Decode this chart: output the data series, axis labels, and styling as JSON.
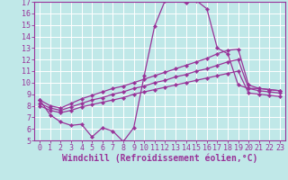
{
  "xlabel": "Windchill (Refroidissement éolien,°C)",
  "bg_color": "#c0e8e8",
  "grid_color": "#ffffff",
  "line_color": "#993399",
  "xlim": [
    -0.5,
    23.5
  ],
  "ylim": [
    5,
    17
  ],
  "xticks": [
    0,
    1,
    2,
    3,
    4,
    5,
    6,
    7,
    8,
    9,
    10,
    11,
    12,
    13,
    14,
    15,
    16,
    17,
    18,
    19,
    20,
    21,
    22,
    23
  ],
  "yticks": [
    5,
    6,
    7,
    8,
    9,
    10,
    11,
    12,
    13,
    14,
    15,
    16,
    17
  ],
  "line1_x": [
    0,
    1,
    2,
    3,
    4,
    5,
    6,
    7,
    8,
    9,
    10,
    11,
    12,
    13,
    14,
    15,
    16,
    17,
    18,
    19,
    20,
    21,
    22,
    23
  ],
  "line1_y": [
    8.5,
    7.2,
    6.6,
    6.3,
    6.4,
    5.3,
    6.1,
    5.8,
    4.9,
    6.1,
    10.6,
    14.9,
    17.1,
    17.2,
    16.9,
    17.1,
    16.4,
    13.0,
    12.5,
    9.8,
    9.5,
    9.5,
    9.4,
    9.3
  ],
  "line2_x": [
    0,
    1,
    2,
    3,
    4,
    5,
    6,
    7,
    8,
    9,
    10,
    11,
    12,
    13,
    14,
    15,
    16,
    17,
    18,
    19,
    20,
    21,
    22,
    23
  ],
  "line2_y": [
    8.5,
    8.0,
    7.8,
    8.2,
    8.6,
    8.9,
    9.2,
    9.5,
    9.7,
    10.0,
    10.3,
    10.6,
    10.9,
    11.2,
    11.5,
    11.8,
    12.1,
    12.5,
    12.8,
    12.9,
    9.8,
    9.5,
    9.4,
    9.3
  ],
  "line3_x": [
    0,
    1,
    2,
    3,
    4,
    5,
    6,
    7,
    8,
    9,
    10,
    11,
    12,
    13,
    14,
    15,
    16,
    17,
    18,
    19,
    20,
    21,
    22,
    23
  ],
  "line3_y": [
    8.2,
    7.8,
    7.6,
    7.9,
    8.2,
    8.5,
    8.7,
    9.0,
    9.2,
    9.5,
    9.7,
    10.0,
    10.2,
    10.5,
    10.7,
    11.0,
    11.2,
    11.5,
    11.8,
    12.0,
    9.5,
    9.3,
    9.2,
    9.1
  ],
  "line4_x": [
    0,
    1,
    2,
    3,
    4,
    5,
    6,
    7,
    8,
    9,
    10,
    11,
    12,
    13,
    14,
    15,
    16,
    17,
    18,
    19,
    20,
    21,
    22,
    23
  ],
  "line4_y": [
    8.0,
    7.6,
    7.4,
    7.6,
    7.9,
    8.1,
    8.3,
    8.5,
    8.7,
    9.0,
    9.2,
    9.4,
    9.6,
    9.8,
    10.0,
    10.2,
    10.4,
    10.6,
    10.8,
    11.0,
    9.1,
    9.0,
    8.9,
    8.8
  ],
  "tick_fontsize": 6,
  "label_fontsize": 7
}
